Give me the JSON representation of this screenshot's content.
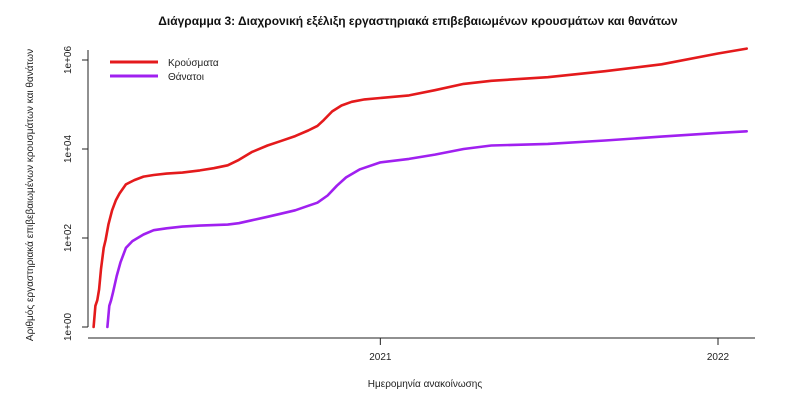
{
  "chart_data": {
    "type": "line",
    "title": "Διάγραμμα 3: Διαχρονική εξέλιξη εργαστηριακά επιβεβαιωμένων κρουσμάτων και θανάτων",
    "xlabel": "Ημερομηνία ανακοίνωσης",
    "ylabel": "Αριθμός εργαστηριακά επιβεβαιωμένων κρουσμάτων και θανάτων",
    "y_scale": "log",
    "ylim": [
      1,
      1000000
    ],
    "xlim": [
      "2020-02-20",
      "2022-02-10"
    ],
    "x_ticks": [
      {
        "date": "2021-01-01",
        "label": "2021"
      },
      {
        "date": "2022-01-01",
        "label": "2022"
      }
    ],
    "y_ticks": [
      {
        "value": 1,
        "label": "1e+00"
      },
      {
        "value": 100,
        "label": "1e+02"
      },
      {
        "value": 10000,
        "label": "1e+04"
      },
      {
        "value": 1000000,
        "label": "1e+06"
      }
    ],
    "legend_position": "top-left",
    "series": [
      {
        "name": "Κρούσματα",
        "color": "#e41a1c",
        "points": [
          [
            "2020-02-26",
            1
          ],
          [
            "2020-02-28",
            3
          ],
          [
            "2020-03-01",
            4
          ],
          [
            "2020-03-03",
            7
          ],
          [
            "2020-03-05",
            20
          ],
          [
            "2020-03-08",
            60
          ],
          [
            "2020-03-10",
            90
          ],
          [
            "2020-03-13",
            200
          ],
          [
            "2020-03-17",
            420
          ],
          [
            "2020-03-21",
            700
          ],
          [
            "2020-03-25",
            1000
          ],
          [
            "2020-04-01",
            1600
          ],
          [
            "2020-04-10",
            2000
          ],
          [
            "2020-04-20",
            2400
          ],
          [
            "2020-05-01",
            2600
          ],
          [
            "2020-05-15",
            2800
          ],
          [
            "2020-06-01",
            2950
          ],
          [
            "2020-06-20",
            3300
          ],
          [
            "2020-07-05",
            3700
          ],
          [
            "2020-07-20",
            4300
          ],
          [
            "2020-08-01",
            5700
          ],
          [
            "2020-08-15",
            8500
          ],
          [
            "2020-09-01",
            12000
          ],
          [
            "2020-09-15",
            15000
          ],
          [
            "2020-10-01",
            19500
          ],
          [
            "2020-10-15",
            26000
          ],
          [
            "2020-10-25",
            33000
          ],
          [
            "2020-11-01",
            45000
          ],
          [
            "2020-11-10",
            70000
          ],
          [
            "2020-11-20",
            95000
          ],
          [
            "2020-12-01",
            115000
          ],
          [
            "2020-12-15",
            130000
          ],
          [
            "2021-01-01",
            140000
          ],
          [
            "2021-02-01",
            160000
          ],
          [
            "2021-03-01",
            210000
          ],
          [
            "2021-04-01",
            290000
          ],
          [
            "2021-05-01",
            340000
          ],
          [
            "2021-07-01",
            410000
          ],
          [
            "2021-09-01",
            560000
          ],
          [
            "2021-11-01",
            800000
          ],
          [
            "2022-01-01",
            1400000
          ],
          [
            "2022-02-01",
            1800000
          ]
        ]
      },
      {
        "name": "Θάνατοι",
        "color": "#a020f0",
        "points": [
          [
            "2020-03-12",
            1
          ],
          [
            "2020-03-14",
            3
          ],
          [
            "2020-03-16",
            4
          ],
          [
            "2020-03-18",
            6
          ],
          [
            "2020-03-22",
            14
          ],
          [
            "2020-03-26",
            28
          ],
          [
            "2020-04-01",
            60
          ],
          [
            "2020-04-08",
            85
          ],
          [
            "2020-04-20",
            120
          ],
          [
            "2020-05-01",
            150
          ],
          [
            "2020-05-15",
            165
          ],
          [
            "2020-06-01",
            180
          ],
          [
            "2020-06-20",
            190
          ],
          [
            "2020-07-05",
            195
          ],
          [
            "2020-07-20",
            200
          ],
          [
            "2020-08-01",
            215
          ],
          [
            "2020-08-15",
            250
          ],
          [
            "2020-09-01",
            300
          ],
          [
            "2020-09-15",
            350
          ],
          [
            "2020-10-01",
            420
          ],
          [
            "2020-10-15",
            530
          ],
          [
            "2020-10-25",
            620
          ],
          [
            "2020-11-05",
            900
          ],
          [
            "2020-11-15",
            1500
          ],
          [
            "2020-11-25",
            2300
          ],
          [
            "2020-12-10",
            3500
          ],
          [
            "2021-01-01",
            5000
          ],
          [
            "2021-02-01",
            6000
          ],
          [
            "2021-03-01",
            7500
          ],
          [
            "2021-04-01",
            10000
          ],
          [
            "2021-05-01",
            12000
          ],
          [
            "2021-07-01",
            13000
          ],
          [
            "2021-09-01",
            15500
          ],
          [
            "2021-11-01",
            19000
          ],
          [
            "2022-01-01",
            23000
          ],
          [
            "2022-02-01",
            25000
          ]
        ]
      }
    ]
  }
}
